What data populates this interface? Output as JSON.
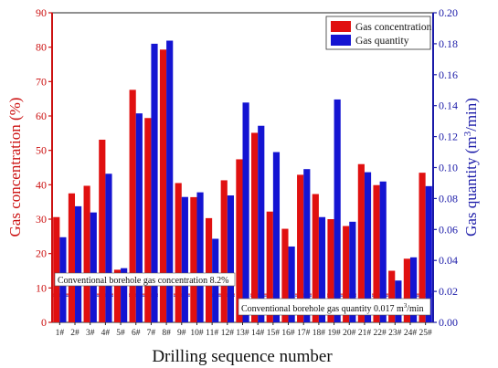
{
  "chart_data": {
    "type": "bar",
    "categories": [
      "1#",
      "2#",
      "3#",
      "4#",
      "5#",
      "6#",
      "7#",
      "8#",
      "9#",
      "10#",
      "11#",
      "12#",
      "13#",
      "14#",
      "15#",
      "16#",
      "17#",
      "18#",
      "19#",
      "20#",
      "21#",
      "22#",
      "23#",
      "24#",
      "25#"
    ],
    "series": [
      {
        "name": "Gas concentration",
        "axis": "left",
        "color": "#e01010",
        "values": [
          30.6,
          37.5,
          39.7,
          53.1,
          15.3,
          67.6,
          59.4,
          79.3,
          40.5,
          36.4,
          30.3,
          41.3,
          47.4,
          55.1,
          32.2,
          27.2,
          42.9,
          37.3,
          30.0,
          28.0,
          46.0,
          39.9,
          15.0,
          18.5,
          43.5
        ]
      },
      {
        "name": "Gas quantity",
        "axis": "right",
        "color": "#1414d2",
        "values": [
          0.055,
          0.075,
          0.071,
          0.096,
          0.035,
          0.135,
          0.18,
          0.182,
          0.081,
          0.084,
          0.054,
          0.082,
          0.142,
          0.127,
          0.11,
          0.049,
          0.099,
          0.068,
          0.144,
          0.065,
          0.097,
          0.091,
          0.027,
          0.042,
          0.088
        ]
      }
    ],
    "xlabel": "Drilling sequence number",
    "ylabel_left": "Gas concentration (%)",
    "ylabel_right_main": "Gas quantity (m",
    "ylabel_right_sup": "3",
    "ylabel_right_tail": "/min)",
    "ylim_left": [
      0,
      90
    ],
    "ylim_right": [
      0,
      0.2
    ],
    "yticks_left": [
      "0",
      "10",
      "20",
      "30",
      "40",
      "50",
      "60",
      "70",
      "80",
      "90"
    ],
    "yticks_right": [
      "0.00",
      "0.02",
      "0.04",
      "0.06",
      "0.08",
      "0.10",
      "0.12",
      "0.14",
      "0.16",
      "0.18",
      "0.20"
    ],
    "legend_position": "top-right",
    "reference_lines": [
      {
        "axis": "left",
        "value": 8.2,
        "label": "Conventional borehole gas concentration 8.2%"
      },
      {
        "axis": "right",
        "value": 0.017,
        "label_main": "Conventional borehole gas quantity 0.017 m",
        "label_sup": "3",
        "label_tail": "/min"
      }
    ],
    "left_axis_color": "#cc1111",
    "right_axis_color": "#1a1aa8"
  }
}
